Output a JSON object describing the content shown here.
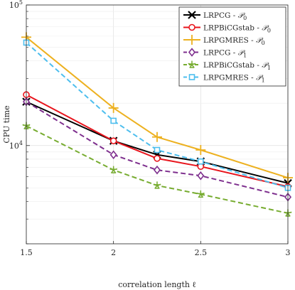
{
  "chart_data": {
    "type": "line",
    "title": "",
    "xlabel": "correlation length ℓ",
    "ylabel": "CPU time",
    "x": [
      1.5,
      2,
      2.25,
      2.5,
      3
    ],
    "xlim": [
      1.5,
      3
    ],
    "ylim": [
      2000,
      100000
    ],
    "yscale": "log",
    "grid": true,
    "legend_position": "top-right",
    "xticks": [
      "1.5",
      "2",
      "2.5",
      "3"
    ],
    "yticks": [
      {
        "base": "10",
        "exp": "4",
        "value": 10000
      },
      {
        "base": "10",
        "exp": "5",
        "value": 100000
      }
    ],
    "series": [
      {
        "name": "LRPCG - ",
        "sub": "0",
        "color": "#000000",
        "dash": "solid",
        "marker": "x",
        "values": [
          20500,
          10800,
          8600,
          7700,
          5400
        ]
      },
      {
        "name": "LRPBiCGstab - ",
        "sub": "0",
        "color": "#e8141c",
        "dash": "solid",
        "marker": "circle",
        "values": [
          23000,
          10800,
          8100,
          7100,
          5100
        ]
      },
      {
        "name": "LRPGMRES - ",
        "sub": "0",
        "color": "#edb120",
        "dash": "solid",
        "marker": "plus",
        "values": [
          59000,
          18500,
          11500,
          9300,
          5900
        ]
      },
      {
        "name": "LRPCG - ",
        "sub": "1",
        "color": "#7e2f8e",
        "dash": "dashed",
        "marker": "diamond",
        "values": [
          20500,
          8600,
          6700,
          6100,
          4300
        ]
      },
      {
        "name": "LRPBiCGstab - ",
        "sub": "1",
        "color": "#77ac30",
        "dash": "dashed",
        "marker": "star",
        "values": [
          13800,
          6700,
          5200,
          4500,
          3300
        ]
      },
      {
        "name": "LRPGMRES - ",
        "sub": "1",
        "color": "#4dbeee",
        "dash": "dashed",
        "marker": "square",
        "values": [
          54000,
          15000,
          9300,
          7700,
          5000
        ]
      }
    ]
  }
}
